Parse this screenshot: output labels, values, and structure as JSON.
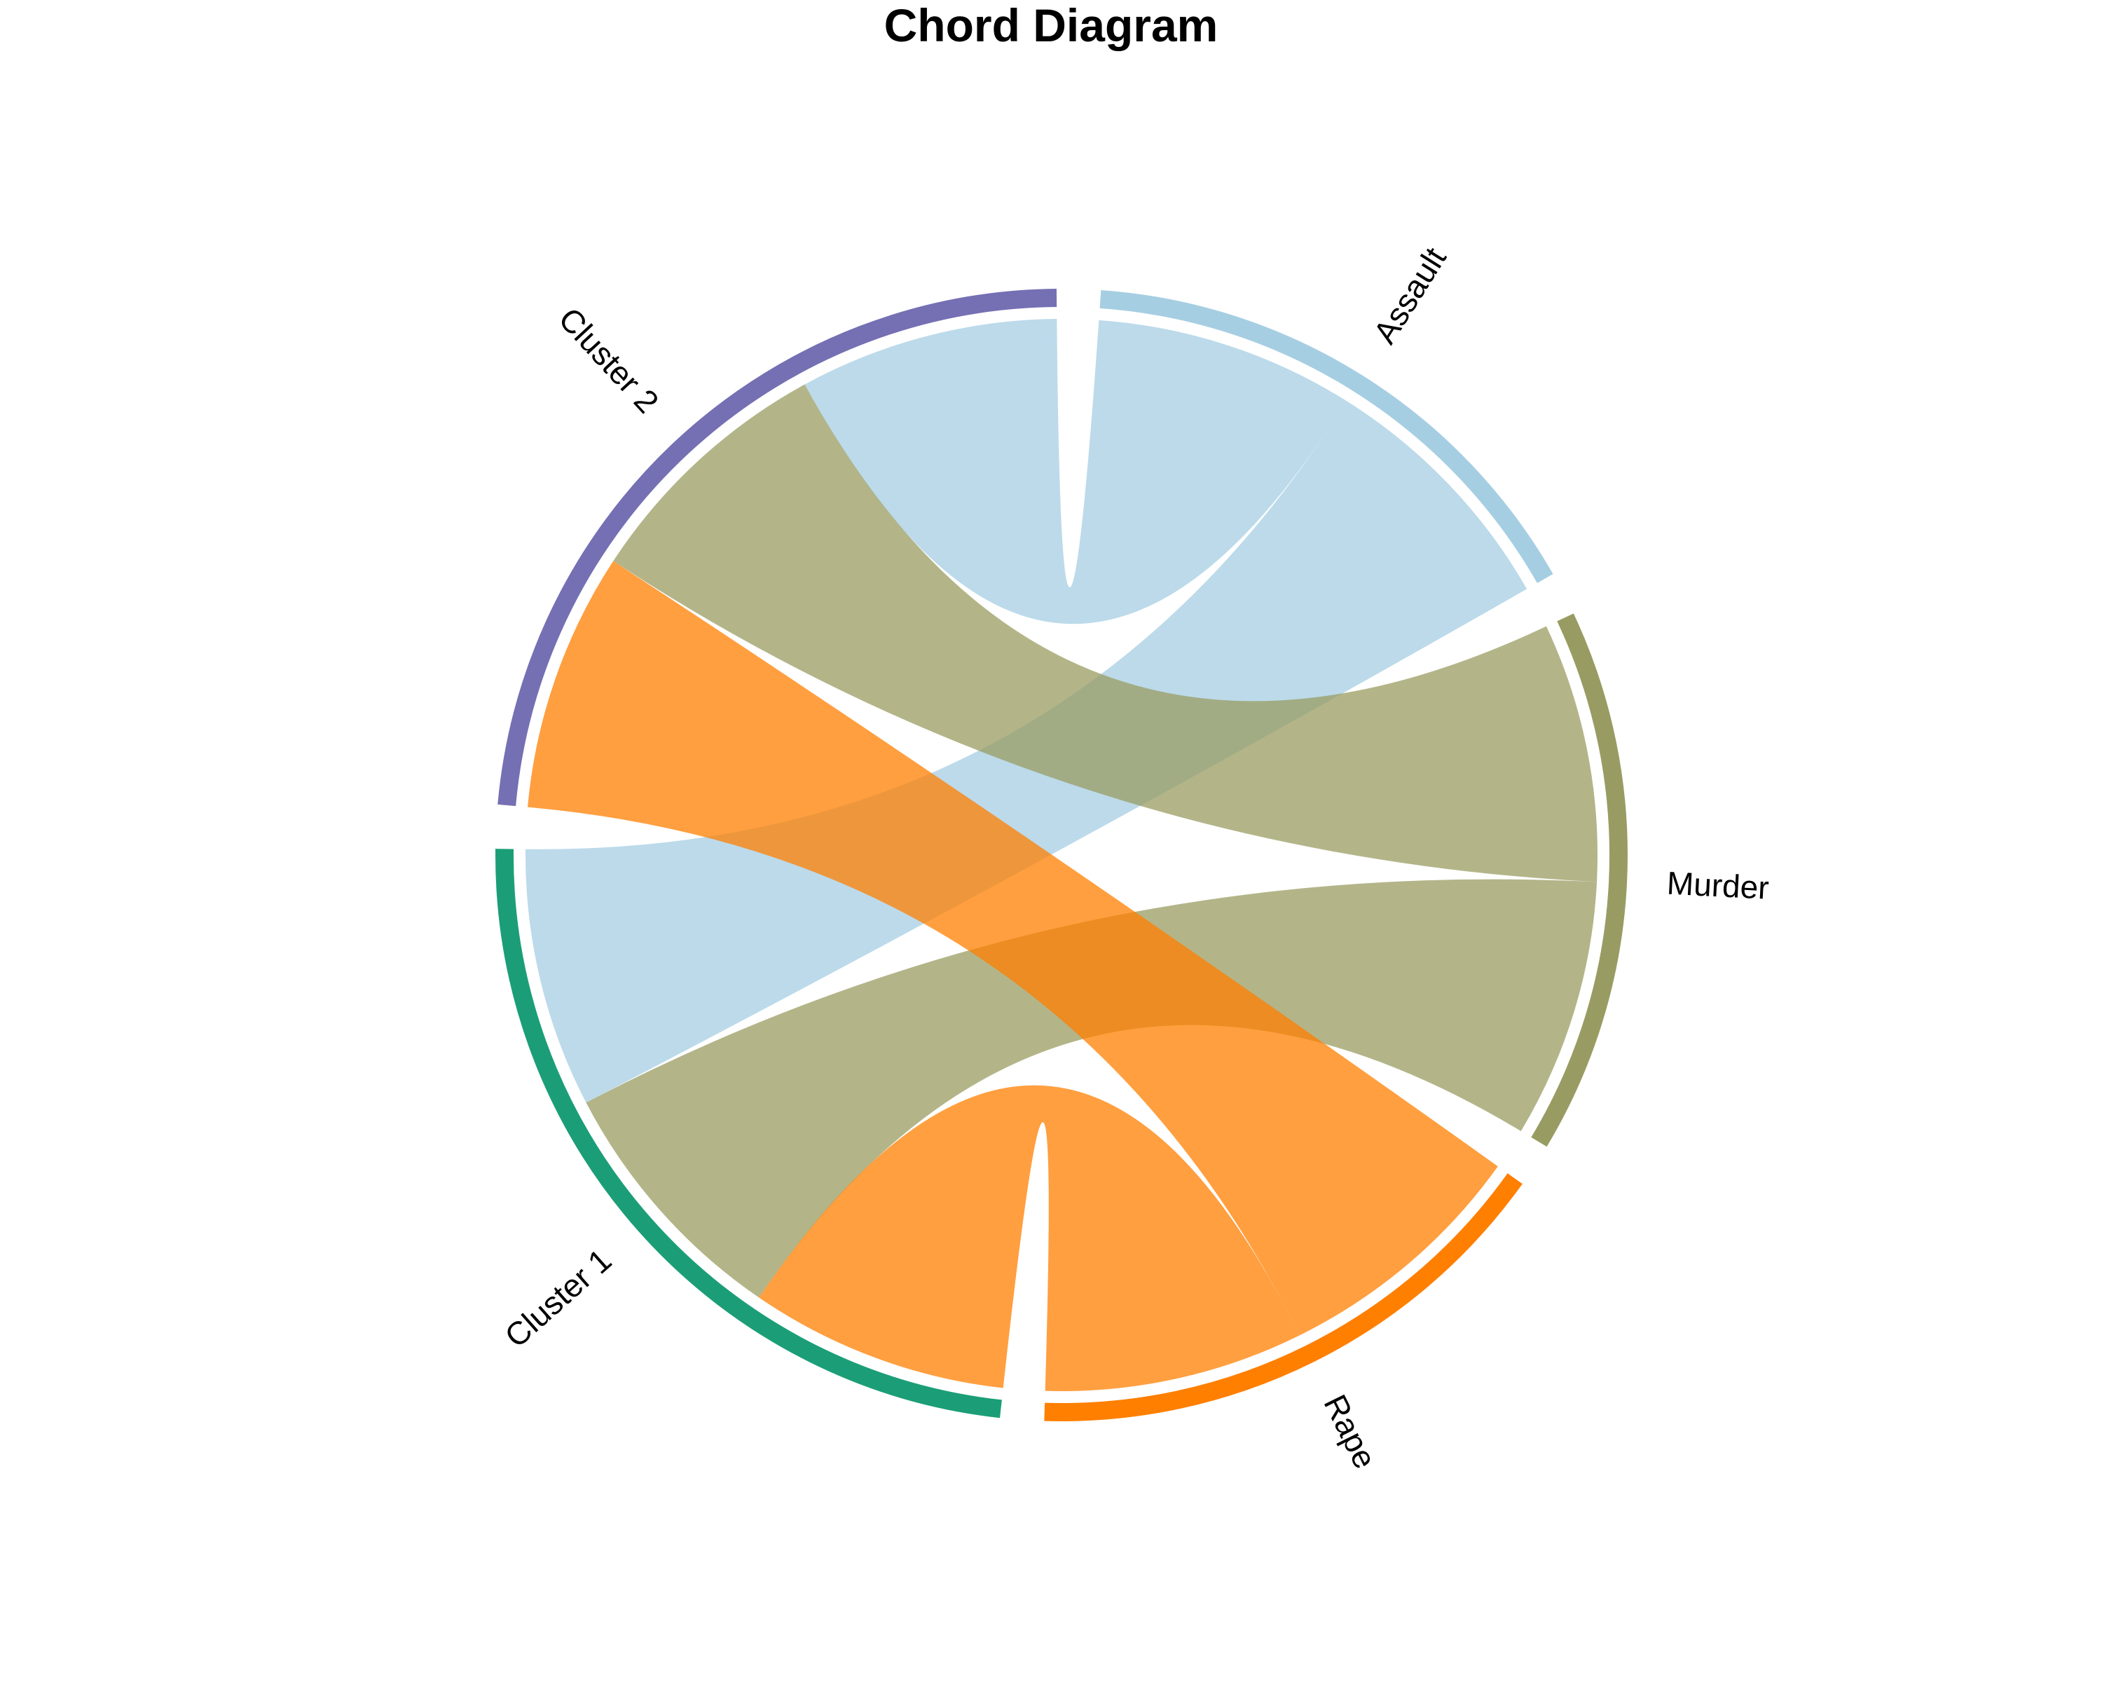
{
  "chart_data": {
    "type": "chord",
    "title": "Chord Diagram",
    "sectors": [
      {
        "name": "Assault",
        "color": "#a6cee3"
      },
      {
        "name": "Murder",
        "color": "#999c62"
      },
      {
        "name": "Rape",
        "color": "#ff7f00"
      },
      {
        "name": "Cluster 1",
        "color": "#1b9e77"
      },
      {
        "name": "Cluster 2",
        "color": "#7570b3"
      }
    ],
    "links": [
      {
        "from": "Assault",
        "to": "Cluster 2",
        "value": 1
      },
      {
        "from": "Assault",
        "to": "Cluster 1",
        "value": 1
      },
      {
        "from": "Murder",
        "to": "Cluster 2",
        "value": 1
      },
      {
        "from": "Murder",
        "to": "Cluster 1",
        "value": 1
      },
      {
        "from": "Rape",
        "to": "Cluster 2",
        "value": 1
      },
      {
        "from": "Rape",
        "to": "Cluster 1",
        "value": 1
      }
    ],
    "link_colors": {
      "Assault": "#a6cee3",
      "Murder": "#999c62",
      "Rape": "#ff7f00"
    }
  }
}
